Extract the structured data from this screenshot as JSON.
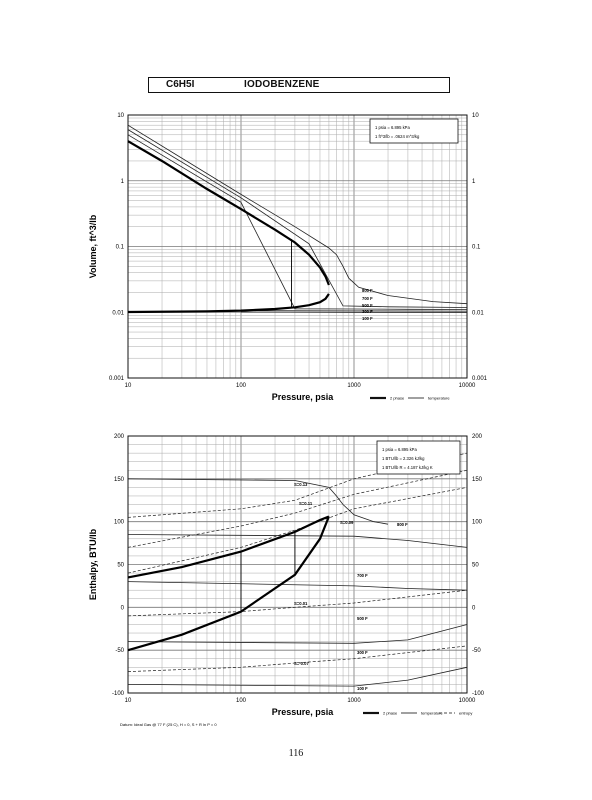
{
  "title": {
    "formula": "C6H5I",
    "name": "IODOBENZENE"
  },
  "page_number": "116",
  "chart_data": [
    {
      "type": "line",
      "xlabel": "Pressure,  psia",
      "ylabel": "Volume, ft^3/lb",
      "x_scale": "log",
      "y_scale": "log",
      "xlim": [
        10,
        10000
      ],
      "ylim": [
        0.001,
        10
      ],
      "x_ticks": [
        "10",
        "100",
        "1000",
        "10000"
      ],
      "y_ticks_left": [
        "0.001",
        "0.01",
        "0.1",
        "1",
        "10"
      ],
      "y_ticks_right": [
        "0.001",
        "0.01",
        "0.1",
        "1",
        "10"
      ],
      "conversion_box": [
        "1 psia  =  6.895 kPa",
        "1 ft^3/lb  =  .0624 m^3/kg"
      ],
      "legend": {
        "position": "bottom-right",
        "entries": [
          "2 phase",
          "temperature"
        ]
      },
      "saturation_dome": {
        "vapor": {
          "x": [
            10,
            20,
            50,
            100,
            200,
            300,
            400,
            500,
            560,
            600
          ],
          "y": [
            4.0,
            2.0,
            0.75,
            0.37,
            0.18,
            0.115,
            0.075,
            0.048,
            0.035,
            0.026
          ]
        },
        "liquid": {
          "x": [
            10,
            50,
            100,
            200,
            300,
            400,
            500,
            560,
            600
          ],
          "y": [
            0.0101,
            0.0103,
            0.0106,
            0.0112,
            0.0119,
            0.0128,
            0.0142,
            0.016,
            0.019
          ]
        }
      },
      "tie_lines": [
        {
          "x": 280,
          "y1": 0.0118,
          "y2": 0.13
        }
      ],
      "temperature_lines": [
        {
          "label": "800 F",
          "x": [
            10,
            100,
            300,
            600,
            700,
            800,
            900,
            1100,
            2000,
            5000,
            10000
          ],
          "y": [
            7.0,
            0.62,
            0.2,
            0.095,
            0.075,
            0.05,
            0.033,
            0.024,
            0.018,
            0.0145,
            0.0135
          ]
        },
        {
          "label": "700 F",
          "x": [
            10,
            100,
            400,
            800,
            2000,
            10000
          ],
          "y": [
            6.0,
            0.55,
            0.11,
            0.0125,
            0.0121,
            0.0118
          ]
        },
        {
          "label": "500 F",
          "x": [
            10,
            100,
            300,
            1000,
            3000,
            10000
          ],
          "y": [
            5.0,
            0.47,
            0.0113,
            0.0112,
            0.0111,
            0.011
          ]
        },
        {
          "label": "300 F",
          "x": [
            100,
            1000,
            10000
          ],
          "y": [
            0.0106,
            0.0105,
            0.0104
          ]
        },
        {
          "label": "100 F",
          "x": [
            100,
            1000,
            10000
          ],
          "y": [
            0.0101,
            0.01,
            0.0099
          ]
        }
      ],
      "line_labels": [
        "800 F",
        "700 F",
        "500 F",
        "300 F",
        "100 F"
      ]
    },
    {
      "type": "line",
      "xlabel": "Pressure,  psia",
      "ylabel": "Enthalpy, BTU/lb",
      "x_scale": "log",
      "xlim": [
        10,
        10000
      ],
      "ylim": [
        -100,
        200
      ],
      "x_ticks": [
        "10",
        "100",
        "1000",
        "10000"
      ],
      "y_ticks_left": [
        "-100",
        "-50",
        "0",
        "50",
        "100",
        "150",
        "200"
      ],
      "y_ticks_right": [
        "-100",
        "-50",
        "0",
        "50",
        "100",
        "150",
        "200"
      ],
      "conversion_box": [
        "1 psia  =  6.895 kPa",
        "1 BTU/lb  =  2.326 kJ/kg",
        "1 BTU/lb R  =  4.187 kJ/kg K"
      ],
      "footnote": "Datum: Ideal Gas @ 77 F (25 C),  H = 0,  S + R ln P = 0",
      "legend": {
        "position": "bottom-right",
        "entries": [
          "2 phase",
          "temperature",
          "entropy"
        ]
      },
      "saturation_dome": {
        "vapor": {
          "x": [
            10,
            30,
            100,
            300,
            500,
            600
          ],
          "y": [
            35,
            47,
            65,
            88,
            102,
            106
          ]
        },
        "liquid": {
          "x": [
            10,
            30,
            100,
            300,
            500,
            600
          ],
          "y": [
            -50,
            -32,
            -5,
            38,
            80,
            106
          ]
        }
      },
      "tie_lines": [
        {
          "x": 100,
          "y1": -5,
          "y2": 65
        },
        {
          "x": 300,
          "y1": 38,
          "y2": 88
        }
      ],
      "temperature_lines": [
        {
          "label": "800 F",
          "x": [
            10,
            300,
            600,
            700,
            800,
            1000,
            1500,
            2000
          ],
          "y": [
            150,
            148,
            140,
            130,
            120,
            108,
            100,
            97
          ]
        },
        {
          "label": "700 F",
          "x": [
            10,
            1000,
            3000,
            10000
          ],
          "y": [
            85,
            83,
            78,
            70
          ]
        },
        {
          "label": "500 F",
          "x": [
            10,
            1000,
            3000,
            10000
          ],
          "y": [
            30,
            25,
            22,
            20
          ]
        },
        {
          "label": "300 F",
          "x": [
            10,
            1000,
            3000,
            10000
          ],
          "y": [
            -40,
            -42,
            -38,
            -20
          ]
        },
        {
          "label": "100 F",
          "x": [
            10,
            1000,
            3000,
            10000
          ],
          "y": [
            -90,
            -92,
            -85,
            -70
          ]
        }
      ],
      "entropy_lines": [
        {
          "label": "S=0.13",
          "x": [
            10,
            100,
            300,
            1000,
            10000
          ],
          "y": [
            105,
            115,
            125,
            150,
            180
          ]
        },
        {
          "label": "S=0.11",
          "x": [
            10,
            100,
            300,
            1000,
            10000
          ],
          "y": [
            70,
            95,
            110,
            132,
            160
          ]
        },
        {
          "label": "S=0.09",
          "x": [
            10,
            100,
            300,
            1000,
            10000
          ],
          "y": [
            40,
            70,
            90,
            115,
            140
          ]
        },
        {
          "label": "S=0.01",
          "x": [
            10,
            100,
            300,
            1000,
            10000
          ],
          "y": [
            -10,
            -5,
            0,
            5,
            20
          ]
        },
        {
          "label": "S=-0.07",
          "x": [
            10,
            100,
            300,
            1000,
            10000
          ],
          "y": [
            -75,
            -70,
            -65,
            -60,
            -45
          ]
        }
      ],
      "line_labels": [
        "S=0.13",
        "S=0.11",
        "S=0.09",
        "800 F",
        "700 F",
        "S=0.01",
        "500 F",
        "S=-0.07",
        "300 F",
        "100 F"
      ]
    }
  ]
}
